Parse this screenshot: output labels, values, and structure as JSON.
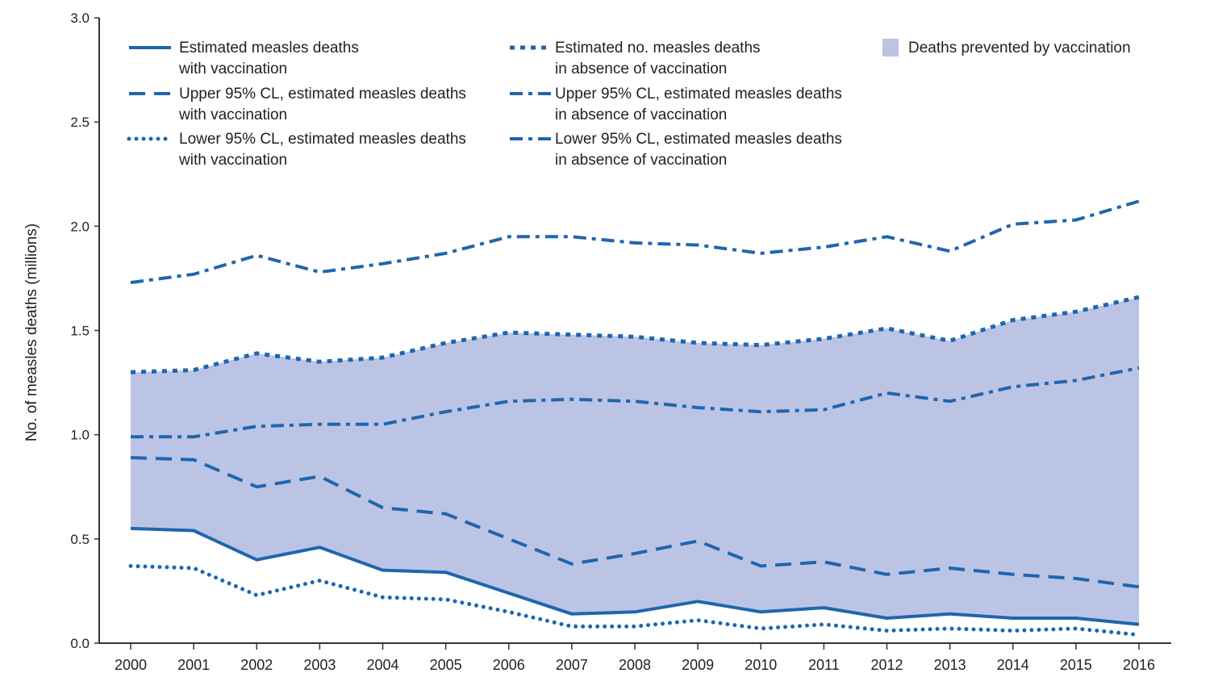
{
  "chart_data": {
    "type": "line",
    "title": "",
    "xlabel": "",
    "ylabel": "No. of measles deaths (millions)",
    "xlim": [
      2000,
      2016
    ],
    "ylim": [
      0,
      3.0
    ],
    "yticks": [
      "0.0",
      "0.5",
      "1.0",
      "1.5",
      "2.0",
      "2.5",
      "3.0"
    ],
    "ytick_values": [
      0,
      0.5,
      1.0,
      1.5,
      2.0,
      2.5,
      3.0
    ],
    "x": [
      2000,
      2001,
      2002,
      2003,
      2004,
      2005,
      2006,
      2007,
      2008,
      2009,
      2010,
      2011,
      2012,
      2013,
      2014,
      2015,
      2016
    ],
    "xticks": [
      "2000",
      "2001",
      "2002",
      "2003",
      "2004",
      "2005",
      "2006",
      "2007",
      "2008",
      "2009",
      "2010",
      "2011",
      "2012",
      "2013",
      "2014",
      "2015",
      "2016"
    ],
    "colors": {
      "line": "#1f66ad",
      "fill": "#bcc4e6",
      "axis": "#333333"
    },
    "series": [
      {
        "key": "with_vacc",
        "name": "Estimated measles deaths with vaccination",
        "legend_lines": [
          "Estimated measles deaths",
          "with vaccination"
        ],
        "style": "solid",
        "values": [
          0.55,
          0.54,
          0.4,
          0.46,
          0.35,
          0.34,
          0.24,
          0.14,
          0.15,
          0.2,
          0.15,
          0.17,
          0.12,
          0.14,
          0.12,
          0.12,
          0.09
        ]
      },
      {
        "key": "with_vacc_upper",
        "name": "Upper 95% CL, estimated measles deaths with vaccination",
        "legend_lines": [
          "Upper 95% CL, estimated measles deaths",
          "with vaccination"
        ],
        "style": "dashed",
        "values": [
          0.89,
          0.88,
          0.75,
          0.8,
          0.65,
          0.62,
          0.5,
          0.38,
          0.43,
          0.49,
          0.37,
          0.39,
          0.33,
          0.36,
          0.33,
          0.31,
          0.27
        ]
      },
      {
        "key": "with_vacc_lower",
        "name": "Lower 95% CL, estimated measles deaths with vaccination",
        "legend_lines": [
          "Lower 95% CL, estimated measles deaths",
          "with vaccination"
        ],
        "style": "dotted",
        "values": [
          0.37,
          0.36,
          0.23,
          0.3,
          0.22,
          0.21,
          0.15,
          0.08,
          0.08,
          0.11,
          0.07,
          0.09,
          0.06,
          0.07,
          0.06,
          0.07,
          0.04
        ]
      },
      {
        "key": "no_vacc",
        "name": "Estimated no. measles deaths in absence of vaccination",
        "legend_lines": [
          "Estimated no. measles deaths",
          "in absence of vaccination"
        ],
        "style": "square-dot",
        "values": [
          1.3,
          1.31,
          1.39,
          1.35,
          1.37,
          1.44,
          1.49,
          1.48,
          1.47,
          1.44,
          1.43,
          1.46,
          1.51,
          1.45,
          1.55,
          1.59,
          1.66
        ]
      },
      {
        "key": "no_vacc_upper",
        "name": "Upper 95% CL, estimated measles deaths in absence of vaccination",
        "legend_lines": [
          "Upper 95% CL, estimated measles deaths",
          "in absence of vaccination"
        ],
        "style": "dash-dot",
        "values": [
          1.73,
          1.77,
          1.86,
          1.78,
          1.82,
          1.87,
          1.95,
          1.95,
          1.92,
          1.91,
          1.87,
          1.9,
          1.95,
          1.88,
          2.01,
          2.03,
          2.12
        ]
      },
      {
        "key": "no_vacc_lower",
        "name": "Lower 95% CL, estimated measles deaths in absence of vaccination",
        "legend_lines": [
          "Lower 95% CL, estimated measles deaths",
          "in absence of vaccination"
        ],
        "style": "dash-dot",
        "values": [
          0.99,
          0.99,
          1.04,
          1.05,
          1.05,
          1.11,
          1.16,
          1.17,
          1.16,
          1.13,
          1.11,
          1.12,
          1.2,
          1.16,
          1.23,
          1.26,
          1.32
        ]
      }
    ],
    "area": {
      "name": "Deaths prevented by vaccination",
      "legend_label": "Deaths prevented by vaccination",
      "between": [
        "with_vacc",
        "no_vacc"
      ]
    },
    "legend_position": "top"
  }
}
